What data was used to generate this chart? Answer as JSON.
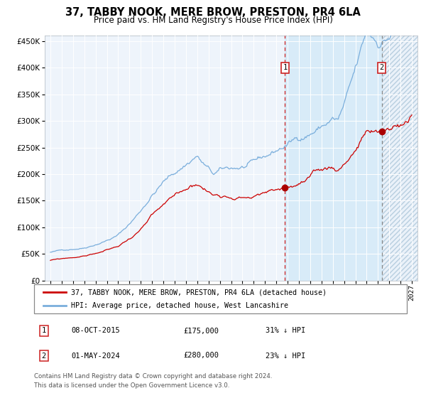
{
  "title": "37, TABBY NOOK, MERE BROW, PRESTON, PR4 6LA",
  "subtitle": "Price paid vs. HM Land Registry's House Price Index (HPI)",
  "legend1": "37, TABBY NOOK, MERE BROW, PRESTON, PR4 6LA (detached house)",
  "legend2": "HPI: Average price, detached house, West Lancashire",
  "sale1_date": "08-OCT-2015",
  "sale1_price": 175000,
  "sale1_label": "1",
  "sale1_hpi_diff": "31% ↓ HPI",
  "sale2_date": "01-MAY-2024",
  "sale2_price": 280000,
  "sale2_label": "2",
  "sale2_hpi_diff": "23% ↓ HPI",
  "footer": "Contains HM Land Registry data © Crown copyright and database right 2024.\nThis data is licensed under the Open Government Licence v3.0.",
  "hpi_color": "#7aaedc",
  "price_color": "#cc0000",
  "point_color": "#aa0000",
  "sale1_x_year": 2015.77,
  "sale2_x_year": 2024.33,
  "ylim": [
    0,
    460000
  ],
  "xlim_start": 1994.5,
  "xlim_end": 2027.5
}
